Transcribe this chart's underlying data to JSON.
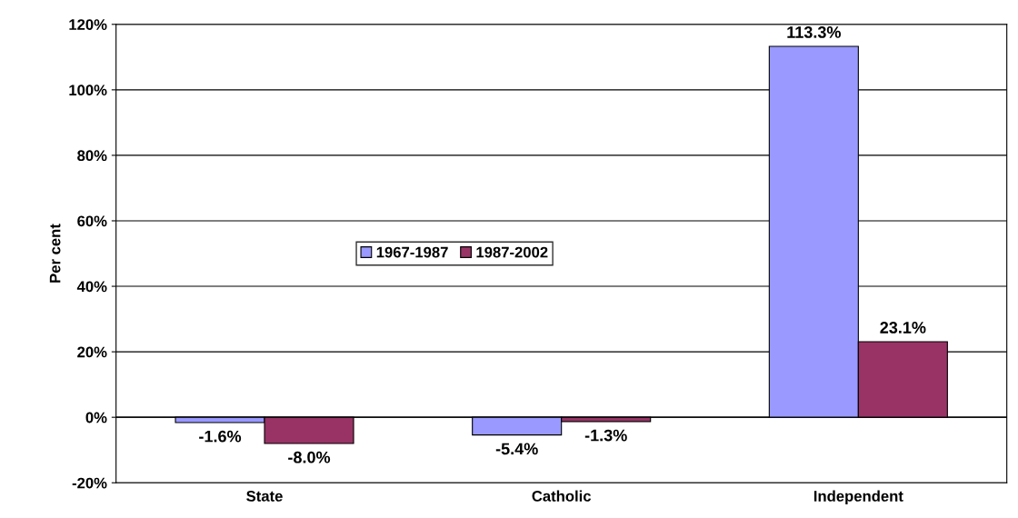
{
  "chart_data": {
    "type": "bar",
    "ylabel": "Per cent",
    "categories": [
      "State",
      "Catholic",
      "Independent"
    ],
    "series": [
      {
        "name": "1967-1987",
        "color": "#9999ff",
        "values": [
          -1.6,
          -5.4,
          113.3
        ],
        "value_labels": [
          "-1.6%",
          "-5.4%",
          "113.3%"
        ]
      },
      {
        "name": "1987-2002",
        "color": "#993366",
        "values": [
          -8.0,
          -1.3,
          23.1
        ],
        "value_labels": [
          "-8.0%",
          "-1.3%",
          "23.1%"
        ]
      }
    ],
    "ylim": [
      -20,
      120
    ],
    "yticks": [
      {
        "value": -20,
        "label": "-20%"
      },
      {
        "value": 0,
        "label": "0%"
      },
      {
        "value": 20,
        "label": "20%"
      },
      {
        "value": 40,
        "label": "40%"
      },
      {
        "value": 60,
        "label": "60%"
      },
      {
        "value": 80,
        "label": "80%"
      },
      {
        "value": 100,
        "label": "100%"
      },
      {
        "value": 120,
        "label": "120%"
      }
    ],
    "grid": "y",
    "legend": "left"
  }
}
